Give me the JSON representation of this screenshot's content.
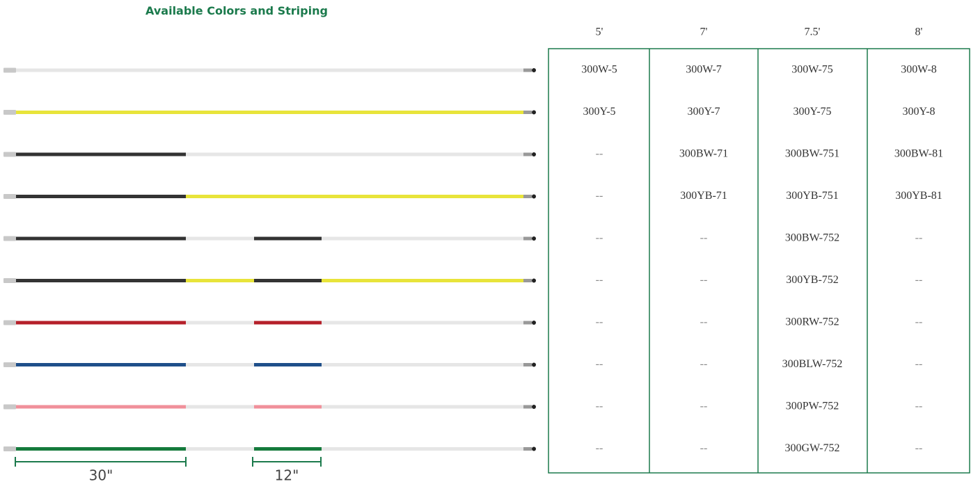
{
  "header": {
    "title": "Available Colors and Striping"
  },
  "table": {
    "headers": [
      "5'",
      "7'",
      "7.5'",
      "8'"
    ],
    "rows": [
      [
        "300W-5",
        "300W-7",
        "300W-75",
        "300W-8"
      ],
      [
        "300Y-5",
        "300Y-7",
        "300Y-75",
        "300Y-8"
      ],
      [
        "--",
        "300BW-71",
        "300BW-751",
        "300BW-81"
      ],
      [
        "--",
        "300YB-71",
        "300YB-751",
        "300YB-81"
      ],
      [
        "--",
        "--",
        "300BW-752",
        "--"
      ],
      [
        "--",
        "--",
        "300YB-752",
        "--"
      ],
      [
        "--",
        "--",
        "300RW-752",
        "--"
      ],
      [
        "--",
        "--",
        "300BLW-752",
        "--"
      ],
      [
        "--",
        "--",
        "300PW-752",
        "--"
      ],
      [
        "--",
        "--",
        "300GW-752",
        "--"
      ]
    ]
  },
  "dimensions": [
    "30\"",
    "12\""
  ]
}
